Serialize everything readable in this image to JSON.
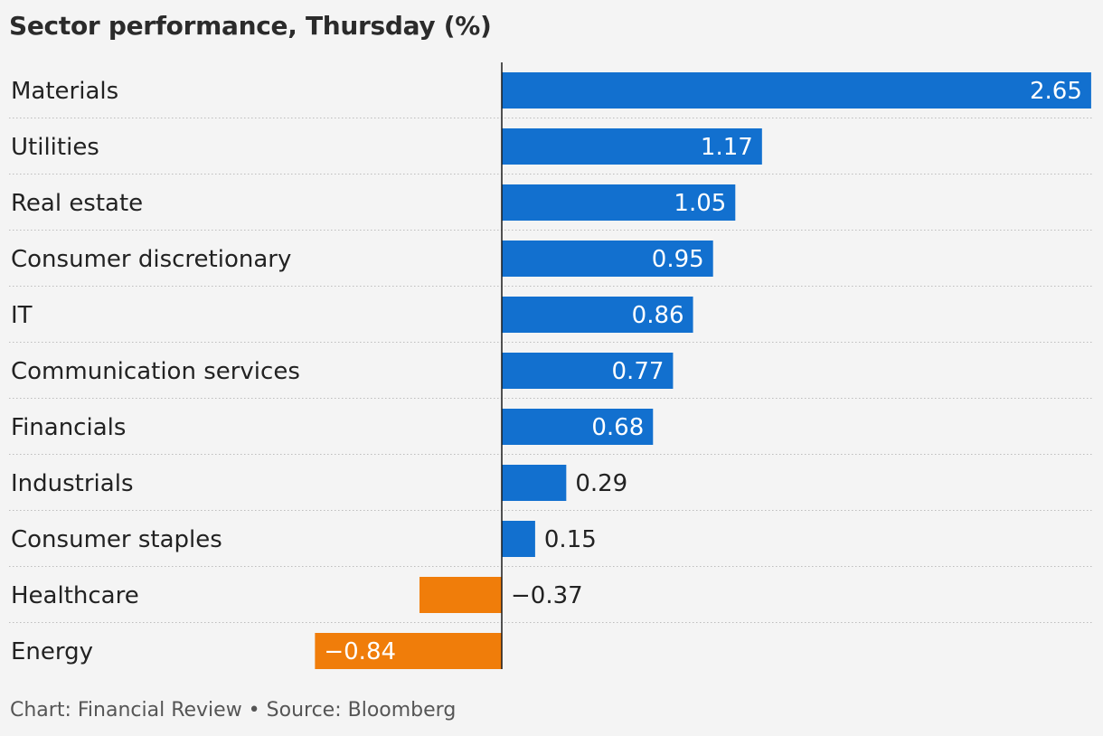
{
  "title": "Sector performance, Thursday (%)",
  "source": "Chart: Financial Review • Source: Bloomberg",
  "colors": {
    "positive": "#1270cf",
    "negative": "#f07d0a",
    "label_inside": "#ffffff",
    "label_outside": "#222222"
  },
  "chart_data": {
    "type": "bar",
    "orientation": "horizontal",
    "categories": [
      "Materials",
      "Utilities",
      "Real estate",
      "Consumer discretionary",
      "IT",
      "Communication services",
      "Financials",
      "Industrials",
      "Consumer staples",
      "Healthcare",
      "Energy"
    ],
    "values": [
      2.65,
      1.17,
      1.05,
      0.95,
      0.86,
      0.77,
      0.68,
      0.29,
      0.15,
      -0.37,
      -0.84
    ],
    "value_labels": [
      "2.65",
      "1.17",
      "1.05",
      "0.95",
      "0.86",
      "0.77",
      "0.68",
      "0.29",
      "0.15",
      "−0.37",
      "−0.84"
    ],
    "title": "Sector performance, Thursday (%)",
    "xlabel": "",
    "ylabel": "",
    "grid": false,
    "legend": "none"
  }
}
